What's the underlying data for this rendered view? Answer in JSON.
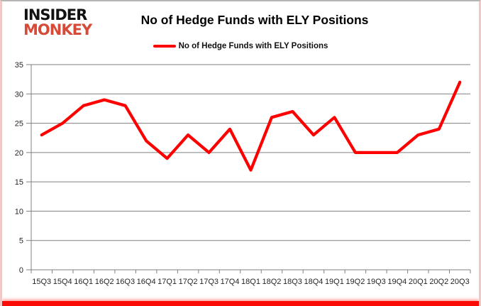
{
  "branding": {
    "logo_line1": "INSIDER",
    "logo_line2": "MONKEY"
  },
  "title": "No of Hedge Funds with ELY Positions",
  "legend": {
    "label": "No of Hedge Funds with ELY Positions"
  },
  "colors": {
    "series_line": "#ff0000",
    "logo_insider": "#111111",
    "logo_monkey": "#d54a38",
    "grid": "#808080",
    "axis_text": "#262626",
    "bottom_bar": "#fb0b06"
  },
  "chart_data": {
    "type": "line",
    "title": "No of Hedge Funds with ELY Positions",
    "categories": [
      "15Q3",
      "15Q4",
      "16Q1",
      "16Q2",
      "16Q3",
      "16Q4",
      "17Q1",
      "17Q2",
      "17Q3",
      "17Q4",
      "18Q1",
      "18Q2",
      "18Q3",
      "18Q4",
      "19Q1",
      "19Q2",
      "19Q3",
      "19Q4",
      "20Q1",
      "20Q2",
      "20Q3"
    ],
    "series": [
      {
        "name": "No of Hedge Funds with ELY Positions",
        "color": "#ff0000",
        "values": [
          23,
          25,
          28,
          29,
          28,
          22,
          19,
          23,
          20,
          24,
          17,
          26,
          27,
          23,
          26,
          20,
          20,
          20,
          23,
          24,
          32
        ]
      }
    ],
    "ylim": [
      0,
      35
    ],
    "yticks": [
      0,
      5,
      10,
      15,
      20,
      25,
      30,
      35
    ],
    "xlabel": "",
    "ylabel": "",
    "grid": true,
    "legend_position": "top-center"
  }
}
